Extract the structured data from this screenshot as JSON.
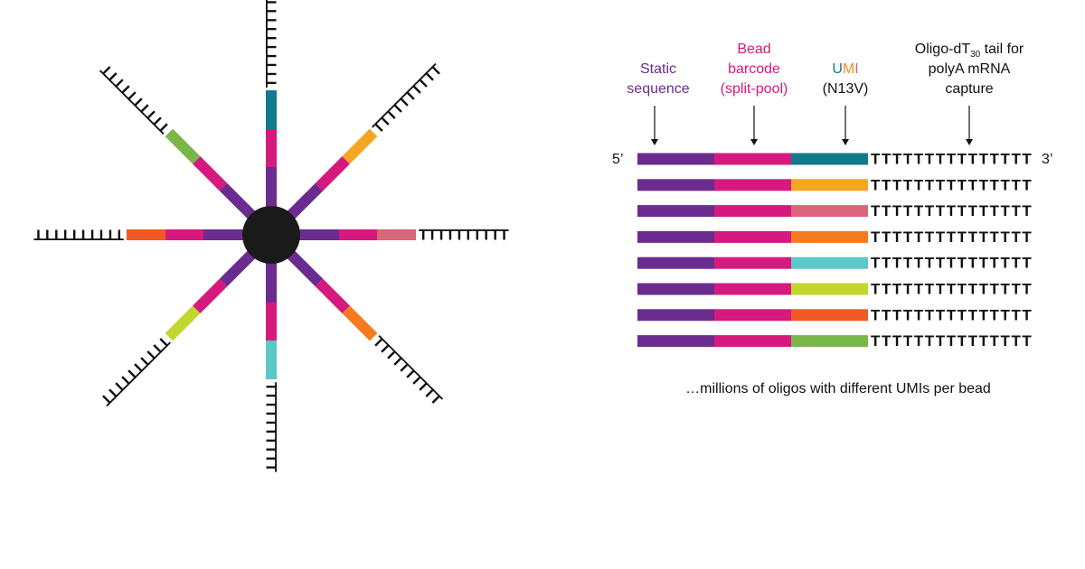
{
  "bead": {
    "poly_t": "TTTTTTTTTT"
  },
  "labels": {
    "static": [
      "Static",
      "sequence"
    ],
    "barcode": [
      "Bead",
      "barcode",
      "(split-pool)"
    ],
    "umi": [
      "U",
      "M",
      "I"
    ],
    "umi_spec": "(N13V)",
    "tail": {
      "pre": "Oligo-dT",
      "sub": "30",
      "post": " tail for",
      "line2": "polyA mRNA",
      "line3": "capture"
    }
  },
  "five_prime": "5’",
  "three_prime": "3’",
  "poly_t": "TTTTTTTTTTTTTTT",
  "footnote": "…millions of oligos with different UMIs per bead"
}
